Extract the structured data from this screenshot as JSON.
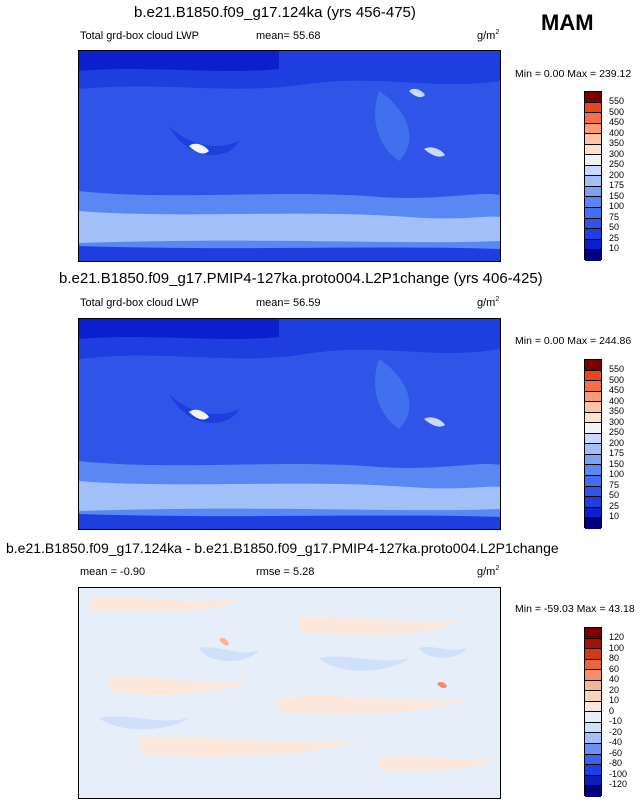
{
  "season": "MAM",
  "chart_data": [
    {
      "type": "heatmap",
      "title": "b.e21.B1850.f09_g17.124ka (yrs 456-475)",
      "left_label": "Total grd-box cloud LWP",
      "center_label": "mean=  55.68",
      "units": "g/m",
      "units_sup": "2",
      "min_label": "Min =",
      "min_value": "0.00",
      "max_label": "Max =",
      "max_value": "239.12",
      "colorbar_levels": [
        "10",
        "25",
        "50",
        "75",
        "100",
        "150",
        "175",
        "200",
        "250",
        "300",
        "350",
        "400",
        "450",
        "500",
        "550"
      ],
      "colorbar_colors": [
        "#00007f",
        "#0c1fcc",
        "#1e3ee0",
        "#2e55e8",
        "#4170ee",
        "#5a88f2",
        "#7ba2f6",
        "#a1bff9",
        "#c8dafc",
        "#f3f3f3",
        "#fde1cf",
        "#fcc3a6",
        "#f99b76",
        "#f57049",
        "#e8461f",
        "#7a0000"
      ],
      "mean": 55.68,
      "min": 0.0,
      "max": 239.12
    },
    {
      "type": "heatmap",
      "title": "b.e21.B1850.f09_g17.PMIP4-127ka.proto004.L2P1change (yrs 406-425)",
      "left_label": "Total grd-box cloud LWP",
      "center_label": "mean=  56.59",
      "units": "g/m",
      "units_sup": "2",
      "min_label": "Min =",
      "min_value": "0.00",
      "max_label": "Max =",
      "max_value": "244.86",
      "colorbar_levels": [
        "10",
        "25",
        "50",
        "75",
        "100",
        "150",
        "175",
        "200",
        "250",
        "300",
        "350",
        "400",
        "450",
        "500",
        "550"
      ],
      "colorbar_colors": [
        "#00007f",
        "#0c1fcc",
        "#1e3ee0",
        "#2e55e8",
        "#4170ee",
        "#5a88f2",
        "#7ba2f6",
        "#a1bff9",
        "#c8dafc",
        "#f3f3f3",
        "#fde1cf",
        "#fcc3a6",
        "#f99b76",
        "#f57049",
        "#e8461f",
        "#7a0000"
      ],
      "mean": 56.59,
      "min": 0.0,
      "max": 244.86
    },
    {
      "type": "heatmap",
      "title": "b.e21.B1850.f09_g17.124ka - b.e21.B1850.f09_g17.PMIP4-127ka.proto004.L2P1change",
      "left_label": "mean =  -0.90",
      "center_label": "rmse =   5.28",
      "units": "g/m",
      "units_sup": "2",
      "min_label": "Min =",
      "min_value": "-59.03",
      "max_label": "Max =",
      "max_value": "43.18",
      "colorbar_levels": [
        "-120",
        "-100",
        "-80",
        "-60",
        "-40",
        "-20",
        "-10",
        "0",
        "10",
        "20",
        "40",
        "60",
        "80",
        "100",
        "120"
      ],
      "colorbar_colors": [
        "#00007f",
        "#0a1fb8",
        "#1e3ee0",
        "#3b63ea",
        "#6a90f2",
        "#a1bff9",
        "#cfe0fa",
        "#e6eefa",
        "#fbe7dc",
        "#fbd3bd",
        "#f8b596",
        "#f28e6a",
        "#e86640",
        "#d13a17",
        "#a01106",
        "#7a0000"
      ],
      "mean": -0.9,
      "rmse": 5.28,
      "min": -59.03,
      "max": 43.18
    }
  ]
}
